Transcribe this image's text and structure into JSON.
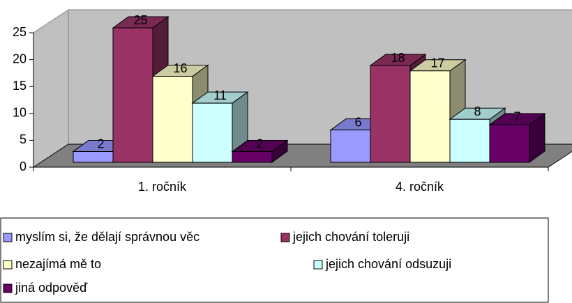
{
  "chart_data": {
    "type": "bar3d",
    "categories": [
      "1. ročník",
      "4. ročník"
    ],
    "series": [
      {
        "name": "myslím si, že dělají správnou věc",
        "color": "#9999ff",
        "values": [
          2,
          6
        ]
      },
      {
        "name": "jejich chování toleruji",
        "color": "#993366",
        "values": [
          25,
          18
        ]
      },
      {
        "name": "nezajímá mě to",
        "color": "#ffffcc",
        "values": [
          16,
          17
        ]
      },
      {
        "name": "jejich chování odsuzuji",
        "color": "#ccffff",
        "values": [
          11,
          8
        ]
      },
      {
        "name": "jiná odpověď",
        "color": "#660066",
        "values": [
          2,
          7
        ]
      }
    ],
    "ylim": [
      0,
      25
    ],
    "yticks": [
      0,
      5,
      10,
      15,
      20,
      25
    ],
    "grid": false
  }
}
